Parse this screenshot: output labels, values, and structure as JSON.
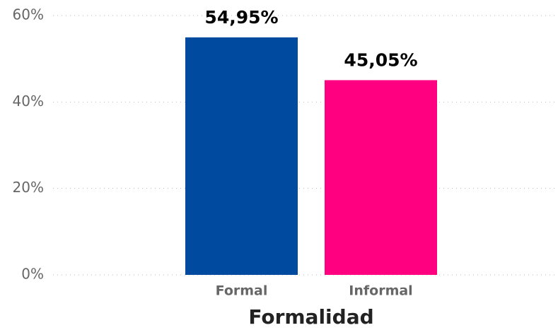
{
  "chart_data": {
    "type": "bar",
    "x_label": "Formalidad",
    "categories": [
      "Formal",
      "Informal"
    ],
    "values": [
      54.95,
      45.05
    ],
    "value_labels": [
      "54,95%",
      "45,05%"
    ],
    "colors": [
      "#004a9f",
      "#ff0080"
    ],
    "ylim": [
      0,
      60
    ],
    "yticks": [
      {
        "value": 0,
        "label": "0%"
      },
      {
        "value": 20,
        "label": "20%"
      },
      {
        "value": 40,
        "label": "40%"
      },
      {
        "value": 60,
        "label": "60%"
      }
    ],
    "grid": true
  }
}
